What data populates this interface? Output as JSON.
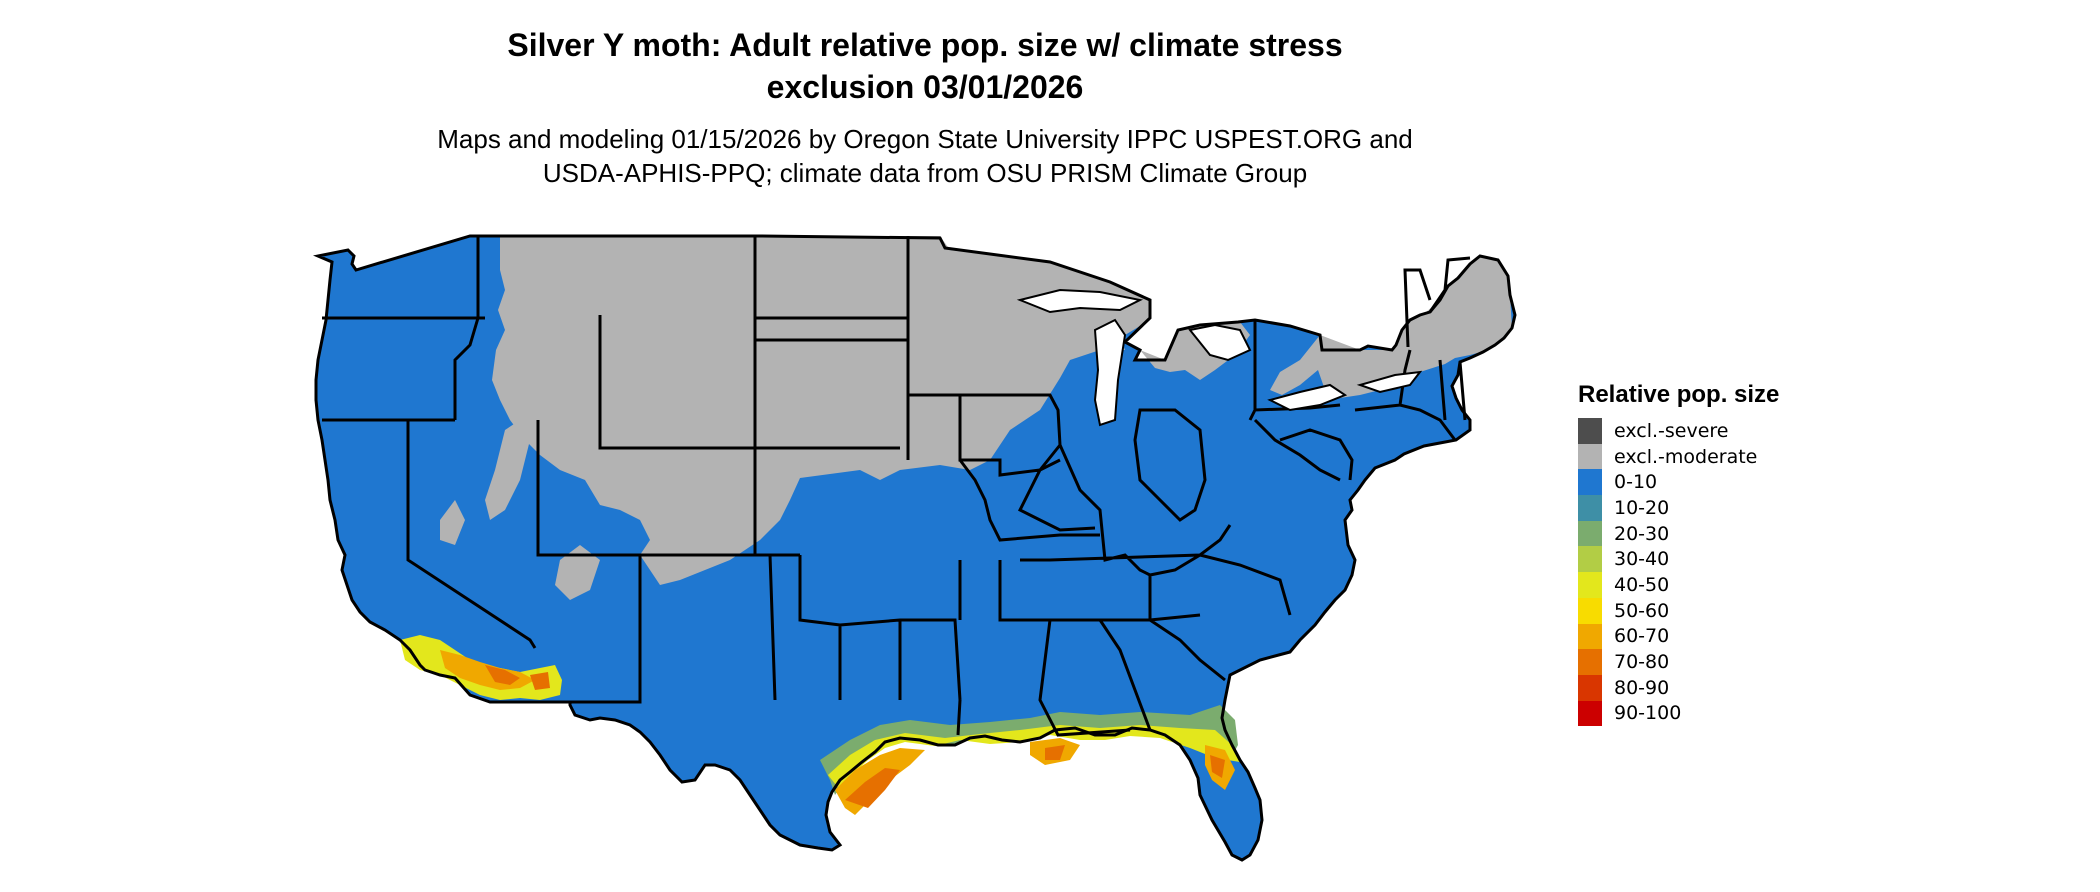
{
  "header": {
    "title_line1": "Silver Y moth: Adult relative pop. size w/ climate stress",
    "title_line2": "exclusion 03/01/2026",
    "subtitle_line1": "Maps and modeling 01/15/2026 by Oregon State University IPPC USPEST.ORG and",
    "subtitle_line2": "USDA-APHIS-PPQ; climate data from OSU PRISM Climate Group"
  },
  "legend": {
    "title": "Relative pop. size",
    "items": [
      {
        "label": "excl.-severe",
        "color": "#4d4d4d"
      },
      {
        "label": "excl.-moderate",
        "color": "#b3b3b3"
      },
      {
        "label": "0-10",
        "color": "#1f77d0"
      },
      {
        "label": "10-20",
        "color": "#3e8fa6"
      },
      {
        "label": "20-30",
        "color": "#7bac6e"
      },
      {
        "label": "30-40",
        "color": "#b2cd45"
      },
      {
        "label": "40-50",
        "color": "#e3e71c"
      },
      {
        "label": "50-60",
        "color": "#f8dc00"
      },
      {
        "label": "60-70",
        "color": "#f0a800"
      },
      {
        "label": "70-80",
        "color": "#e67000"
      },
      {
        "label": "80-90",
        "color": "#d93600"
      },
      {
        "label": "90-100",
        "color": "#cc0000"
      }
    ]
  },
  "map": {
    "colors": {
      "land": "#1f77d0",
      "excluded": "#b3b3b3",
      "border": "#000000"
    }
  }
}
